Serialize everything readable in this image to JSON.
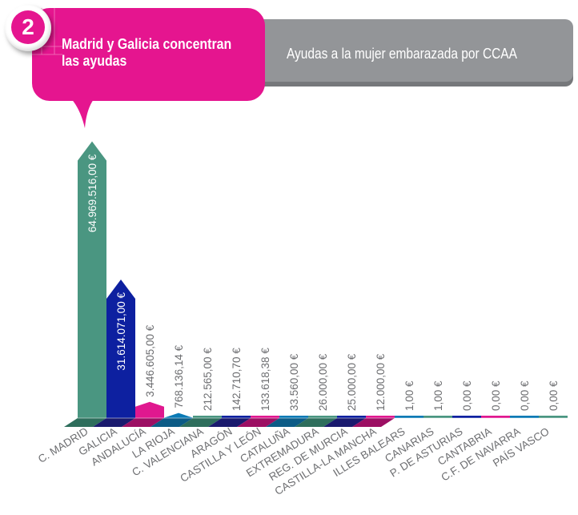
{
  "header": {
    "badge_number": "2",
    "title_line1": "Madrid y Galicia concentran",
    "title_line2": "las ayudas",
    "subtitle": "Ayudas a la mujer embarazada por CCAA"
  },
  "colors": {
    "pink": "#e5158f",
    "gray": "#939598",
    "teal": "#4a9681",
    "navy": "#0d20a0",
    "magenta": "#e0188f",
    "blue": "#0a7ab5"
  },
  "chart_data": {
    "type": "bar",
    "title": "Ayudas a la mujer embarazada por CCAA",
    "xlabel": "",
    "ylabel": "",
    "ylim": [
      0,
      65000000
    ],
    "grid": false,
    "categories": [
      "C. MADRID",
      "GALICIA",
      "ANDALUCÍA",
      "LA RIOJA",
      "C. VALENCIANA",
      "ARAGÓN",
      "CASTILLA Y LEÓN",
      "CATALUÑA",
      "EXTREMADURA",
      "REG. DE MURCIA",
      "CASTILLA-LA MANCHA",
      "ILLES BALEARS",
      "CANARIAS",
      "P. DE ASTURIAS",
      "CANTABRIA",
      "C.F. DE NAVARRA",
      "PAÍS VASCO"
    ],
    "values": [
      64969516.0,
      31614071.0,
      3446605.0,
      768136.14,
      212565.0,
      142710.7,
      133618.38,
      33560.0,
      26000.0,
      25000.0,
      12000.0,
      1.0,
      1.0,
      0.0,
      0.0,
      0.0,
      0.0
    ],
    "value_labels": [
      "64.969.516,00 €",
      "31.614.071,00 €",
      "3.446.605,00 €",
      "768.136,14 €",
      "212.565,00 €",
      "142.710,70 €",
      "133.618,38 €",
      "33.560,00 €",
      "26.000,00 €",
      "25.000,00 €",
      "12.000,00 €",
      "1,00 €",
      "1,00 €",
      "0,00 €",
      "0,00 €",
      "0,00 €",
      "0,00 €"
    ]
  }
}
